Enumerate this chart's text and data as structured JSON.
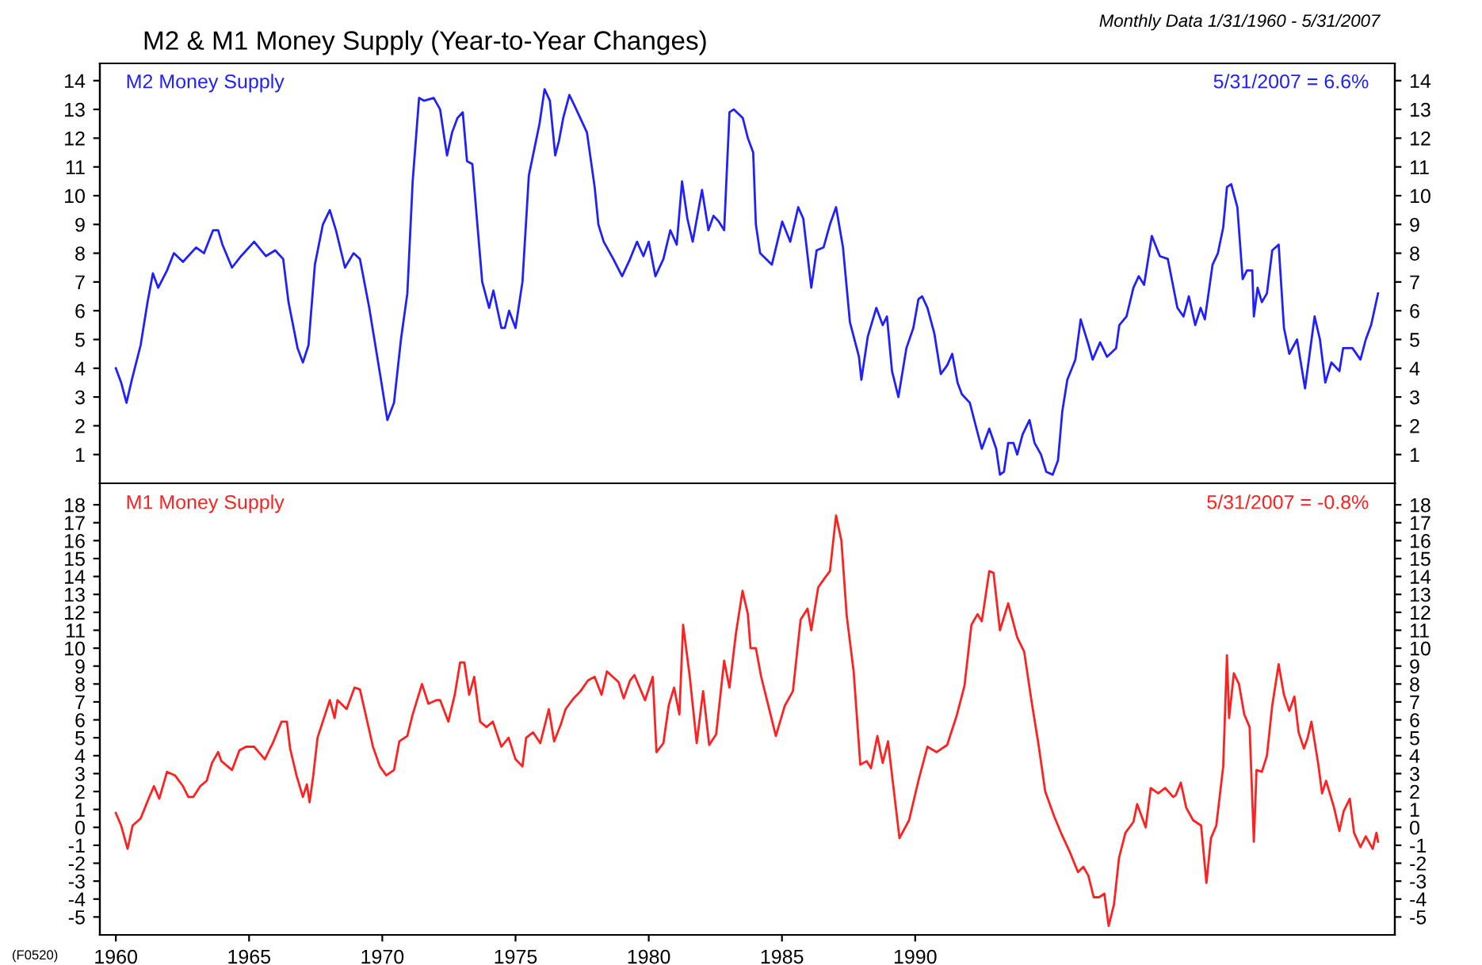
{
  "chart_data": [
    {
      "type": "line",
      "title": "M2 & M1 Money Supply (Year-to-Year Changes)",
      "subtitle": "Monthly Data 1/31/1960 - 5/31/2007",
      "annotations": [
        "5/31/2007 = 6.6%"
      ],
      "xlim": [
        1959.4,
        2008.0
      ],
      "ylim": [
        0,
        14.6
      ],
      "yticks": [
        1,
        2,
        3,
        4,
        5,
        6,
        7,
        8,
        9,
        10,
        11,
        12,
        13,
        14
      ],
      "y2lim": [
        0,
        14.6
      ],
      "y2ticks": [
        1,
        2,
        3,
        4,
        5,
        6,
        7,
        8,
        9,
        10,
        11,
        12,
        13,
        14
      ],
      "tick_labels": "y",
      "grid": false,
      "legend": false,
      "series": [
        {
          "name": "M2 Money Supply",
          "color": "#2020ff",
          "x": [
            1960.0,
            1960.2,
            1960.4,
            1960.6,
            1960.93,
            1961.19,
            1961.39,
            1961.59,
            1961.92,
            1962.18,
            1962.52,
            1963.01,
            1963.31,
            1963.65,
            1963.84,
            1964.0,
            1964.36,
            1964.7,
            1965.19,
            1965.63,
            1965.98,
            1966.28,
            1966.48,
            1966.82,
            1967.02,
            1967.23,
            1967.47,
            1967.77,
            1968.03,
            1968.26,
            1968.6,
            1968.92,
            1969.16,
            1969.51,
            1969.95,
            1970.19,
            1970.44,
            1970.7,
            1970.94,
            1971.14,
            1971.38,
            1971.57,
            1971.93,
            1972.17,
            1972.33,
            1972.43,
            1972.62,
            1972.82,
            1973.02,
            1973.18,
            1973.38,
            1973.55,
            1973.75,
            1974.01,
            1974.17,
            1974.47,
            1974.6,
            1974.76,
            1975.0,
            1975.26,
            1975.5,
            1975.7,
            1975.9,
            1976.09,
            1976.29,
            1976.49,
            1976.63,
            1976.79,
            1977.02,
            1977.18,
            1977.38,
            1977.68,
            1977.97,
            1978.11,
            1978.31,
            1978.67,
            1979.0,
            1979.3,
            1979.56,
            1979.8,
            1980.0,
            1980.25,
            1980.55,
            1980.81,
            1981.05,
            1981.25,
            1981.45,
            1981.65,
            1982.0,
            1982.24,
            1982.43,
            1982.63,
            1982.83,
            1983.03,
            1983.19,
            1983.53,
            1983.72,
            1983.92,
            1984.02,
            1984.18,
            1984.62,
            1985.01,
            1985.31,
            1985.61,
            1985.8,
            1986.1,
            1986.3,
            1986.56,
            1986.8,
            1987.03,
            1987.29,
            1987.55,
            1987.89,
            1987.98,
            1988.22,
            1988.54,
            1988.78,
            1988.94,
            1989.13,
            1989.37,
            1989.67,
            1989.93,
            1990.12,
            1990.26,
            1990.46,
            1990.72,
            1990.96,
            1991.2,
            1991.39,
            1991.59,
            1991.75,
            1992.05,
            1992.3,
            1992.5,
            1992.78,
            1993.04,
            1993.18,
            1993.33,
            1993.49,
            1993.69,
            1993.83,
            1994.03,
            1994.29,
            1994.48,
            1994.72,
            1994.92,
            1995.16,
            1995.36,
            1995.52,
            1995.71,
            1996.01,
            1996.21,
            1996.51,
            1996.66,
            1996.94,
            1997.2,
            1997.54,
            1997.66,
            1997.93,
            1998.19,
            1998.39,
            1998.59,
            1998.88,
            1999.18,
            1999.48,
            1999.84,
            2000.07,
            2000.27,
            2000.51,
            2000.71,
            2000.87,
            2001.16,
            2001.36,
            2001.56,
            2001.7,
            2001.86,
            2002.09,
            2002.29,
            2002.45,
            2002.65,
            2002.71,
            2002.85,
            2003.01,
            2003.2,
            2003.4,
            2003.64,
            2003.84,
            2004.04,
            2004.33,
            2004.63,
            2004.99,
            2005.19,
            2005.39,
            2005.62,
            2005.92,
            2006.06,
            2006.41,
            2006.71,
            2006.91,
            2007.11,
            2007.37
          ],
          "values": [
            4.0,
            3.5,
            2.8,
            3.6,
            4.8,
            6.3,
            7.3,
            6.8,
            7.4,
            8.0,
            7.7,
            8.2,
            8.0,
            8.8,
            8.8,
            8.3,
            7.5,
            7.9,
            8.4,
            7.9,
            8.1,
            7.8,
            6.3,
            4.7,
            4.2,
            4.8,
            7.6,
            9.0,
            9.5,
            8.8,
            7.5,
            8.0,
            7.8,
            6.1,
            3.6,
            2.2,
            2.8,
            5.0,
            6.6,
            10.5,
            13.4,
            13.3,
            13.4,
            13.0,
            12.0,
            11.4,
            12.2,
            12.7,
            12.9,
            11.2,
            11.1,
            9.2,
            7.0,
            6.1,
            6.7,
            5.4,
            5.4,
            6.0,
            5.4,
            7.0,
            10.7,
            11.6,
            12.5,
            13.7,
            13.3,
            11.4,
            11.9,
            12.7,
            13.5,
            13.2,
            12.8,
            12.2,
            10.3,
            9.0,
            8.4,
            7.8,
            7.2,
            7.8,
            8.4,
            7.9,
            8.4,
            7.2,
            7.8,
            8.8,
            8.3,
            10.5,
            9.2,
            8.4,
            10.2,
            8.8,
            9.3,
            9.1,
            8.8,
            12.9,
            13.0,
            12.7,
            12.0,
            11.5,
            9.0,
            8.0,
            7.6,
            9.1,
            8.4,
            9.6,
            9.2,
            6.8,
            8.1,
            8.2,
            9.0,
            9.6,
            8.2,
            5.6,
            4.4,
            3.6,
            5.1,
            6.1,
            5.5,
            5.8,
            3.9,
            3.0,
            4.7,
            5.4,
            6.4,
            6.5,
            6.1,
            5.2,
            3.8,
            4.1,
            4.5,
            3.5,
            3.1,
            2.8,
            1.9,
            1.2,
            1.9,
            1.2,
            0.3,
            0.4,
            1.4,
            1.4,
            1.0,
            1.7,
            2.2,
            1.4,
            1.0,
            0.4,
            0.3,
            0.8,
            2.5,
            3.6,
            4.3,
            5.7,
            4.8,
            4.3,
            4.9,
            4.4,
            4.7,
            5.5,
            5.8,
            6.8,
            7.2,
            6.9,
            8.6,
            7.9,
            7.8,
            6.1,
            5.8,
            6.5,
            5.5,
            6.1,
            5.7,
            7.6,
            8.0,
            8.9,
            10.3,
            10.4,
            9.6,
            7.1,
            7.4,
            7.4,
            5.8,
            6.8,
            6.3,
            6.6,
            8.1,
            8.3,
            5.4,
            4.5,
            5.0,
            3.3,
            5.8,
            5.0,
            3.5,
            4.2,
            3.9,
            4.7,
            4.7,
            4.3,
            5.0,
            5.5,
            6.6
          ]
        }
      ]
    },
    {
      "type": "line",
      "annotations": [
        "5/31/2007 = -0.8%",
        "(F0520)"
      ],
      "xlim": [
        1959.4,
        2008.0
      ],
      "xticks": [
        1960,
        1965,
        1970,
        1975,
        1980,
        1985,
        1990
      ],
      "ylim": [
        -6,
        19.2
      ],
      "yticks": [
        -5,
        -4,
        -3,
        -2,
        -1,
        0,
        1,
        2,
        3,
        4,
        5,
        6,
        7,
        8,
        9,
        10,
        11,
        12,
        13,
        14,
        15,
        16,
        17,
        18
      ],
      "y2lim": [
        -6,
        19.2
      ],
      "y2ticks": [
        -5,
        -4,
        -3,
        -2,
        -1,
        0,
        1,
        2,
        3,
        4,
        5,
        6,
        7,
        8,
        9,
        10,
        11,
        12,
        13,
        14,
        15,
        16,
        17,
        18
      ],
      "grid": false,
      "legend": false,
      "series": [
        {
          "name": "M1 Money Supply",
          "color": "#ff2020",
          "x": [
            1960.0,
            1960.2,
            1960.44,
            1960.63,
            1960.93,
            1961.23,
            1961.43,
            1961.63,
            1961.92,
            1962.22,
            1962.52,
            1962.72,
            1962.91,
            1963.17,
            1963.41,
            1963.61,
            1963.84,
            1963.96,
            1964.36,
            1964.64,
            1964.89,
            1965.19,
            1965.59,
            1965.89,
            1966.22,
            1966.42,
            1966.54,
            1966.78,
            1967.02,
            1967.17,
            1967.27,
            1967.41,
            1967.57,
            1967.81,
            1968.03,
            1968.21,
            1968.32,
            1968.66,
            1968.96,
            1969.16,
            1969.39,
            1969.65,
            1969.91,
            1970.15,
            1970.44,
            1970.64,
            1970.94,
            1971.14,
            1971.49,
            1971.73,
            1972.03,
            1972.17,
            1972.48,
            1972.72,
            1972.92,
            1973.08,
            1973.26,
            1973.45,
            1973.67,
            1973.91,
            1974.15,
            1974.47,
            1974.74,
            1975.0,
            1975.26,
            1975.4,
            1975.66,
            1975.93,
            1976.25,
            1976.45,
            1976.69,
            1976.88,
            1977.18,
            1977.44,
            1977.72,
            1977.97,
            1978.23,
            1978.43,
            1978.87,
            1979.06,
            1979.3,
            1979.46,
            1979.86,
            1980.15,
            1980.29,
            1980.55,
            1980.75,
            1980.95,
            1981.15,
            1981.29,
            1981.54,
            1981.8,
            1982.04,
            1982.27,
            1982.53,
            1982.83,
            1983.03,
            1983.27,
            1983.52,
            1983.72,
            1983.82,
            1984.02,
            1984.22,
            1984.42,
            1984.77,
            1985.11,
            1985.41,
            1985.7,
            1985.96,
            1986.1,
            1986.36,
            1986.6,
            1986.8,
            1987.03,
            1987.23,
            1987.43,
            1987.69,
            1987.94,
            1988.18,
            1988.34,
            1988.58,
            1988.78,
            1988.98,
            1989.41,
            1989.77,
            1990.12,
            1990.46,
            1990.8,
            1991.2,
            1991.55,
            1991.85,
            1992.11,
            1992.34,
            1992.5,
            1992.78,
            1992.94,
            1993.18,
            1993.49,
            1993.83,
            1994.09,
            1994.36,
            1994.62,
            1994.88,
            1995.22,
            1995.47,
            1995.81,
            1996.11,
            1996.31,
            1996.5,
            1996.7,
            1996.9,
            1997.1,
            1997.26,
            1997.46,
            1997.65,
            1997.89,
            1998.19,
            1998.33,
            1998.65,
            1998.84,
            1999.12,
            1999.38,
            1999.68,
            1999.78,
            1999.97,
            2000.17,
            2000.43,
            2000.73,
            2000.93,
            2001.1,
            2001.3,
            2001.56,
            2001.7,
            2001.78,
            2001.96,
            2002.15,
            2002.35,
            2002.55,
            2002.71,
            2002.81,
            2003.01,
            2003.2,
            2003.4,
            2003.64,
            2003.84,
            2004.04,
            2004.23,
            2004.39,
            2004.59,
            2004.73,
            2004.87,
            2005.13,
            2005.27,
            2005.42,
            2005.72,
            2005.92,
            2006.08,
            2006.31,
            2006.47,
            2006.71,
            2006.91,
            2007.17,
            2007.31,
            2007.37
          ],
          "values": [
            0.8,
            0.1,
            -1.2,
            0.1,
            0.5,
            1.6,
            2.3,
            1.6,
            3.1,
            2.9,
            2.3,
            1.7,
            1.7,
            2.3,
            2.6,
            3.6,
            4.2,
            3.7,
            3.2,
            4.3,
            4.5,
            4.5,
            3.8,
            4.7,
            5.9,
            5.9,
            4.4,
            2.9,
            1.7,
            2.4,
            1.4,
            2.9,
            5.0,
            6.1,
            7.1,
            6.1,
            7.1,
            6.6,
            7.8,
            7.7,
            6.2,
            4.5,
            3.4,
            2.9,
            3.2,
            4.8,
            5.1,
            6.3,
            8.0,
            6.9,
            7.1,
            7.1,
            5.9,
            7.4,
            9.2,
            9.2,
            7.4,
            8.4,
            5.9,
            5.6,
            5.9,
            4.5,
            5.0,
            3.8,
            3.4,
            5.0,
            5.3,
            4.7,
            6.6,
            4.8,
            5.7,
            6.6,
            7.2,
            7.6,
            8.2,
            8.4,
            7.4,
            8.7,
            8.1,
            7.2,
            8.2,
            8.5,
            7.1,
            8.4,
            4.2,
            4.7,
            6.8,
            7.8,
            6.3,
            11.3,
            8.4,
            4.7,
            7.6,
            4.6,
            5.2,
            9.3,
            7.8,
            10.8,
            13.2,
            11.9,
            10.0,
            10.0,
            8.4,
            7.2,
            5.1,
            6.8,
            7.6,
            11.6,
            12.2,
            11.0,
            13.4,
            13.9,
            14.3,
            17.4,
            16.0,
            11.8,
            8.7,
            3.5,
            3.7,
            3.3,
            5.1,
            3.6,
            4.8,
            -0.6,
            0.4,
            2.6,
            4.5,
            4.2,
            4.6,
            6.2,
            7.9,
            11.3,
            11.9,
            11.5,
            14.3,
            14.2,
            11.0,
            12.5,
            10.6,
            9.8,
            7.1,
            4.7,
            2.0,
            0.6,
            -0.3,
            -1.4,
            -2.5,
            -2.2,
            -2.7,
            -3.9,
            -3.9,
            -3.7,
            -5.5,
            -4.3,
            -1.7,
            -0.3,
            0.3,
            1.3,
            0.0,
            2.2,
            1.9,
            2.2,
            1.7,
            1.8,
            2.5,
            1.1,
            0.4,
            0.1,
            -3.1,
            -0.6,
            0.1,
            3.4,
            9.6,
            6.1,
            8.6,
            8.0,
            6.3,
            5.6,
            -0.8,
            3.2,
            3.1,
            4.0,
            6.8,
            9.1,
            7.4,
            6.5,
            7.3,
            5.3,
            4.4,
            5.0,
            5.9,
            3.5,
            1.9,
            2.6,
            1.1,
            -0.2,
            0.9,
            1.6,
            -0.3,
            -1.1,
            -0.5,
            -1.2,
            -0.3,
            -0.8
          ]
        }
      ]
    }
  ]
}
